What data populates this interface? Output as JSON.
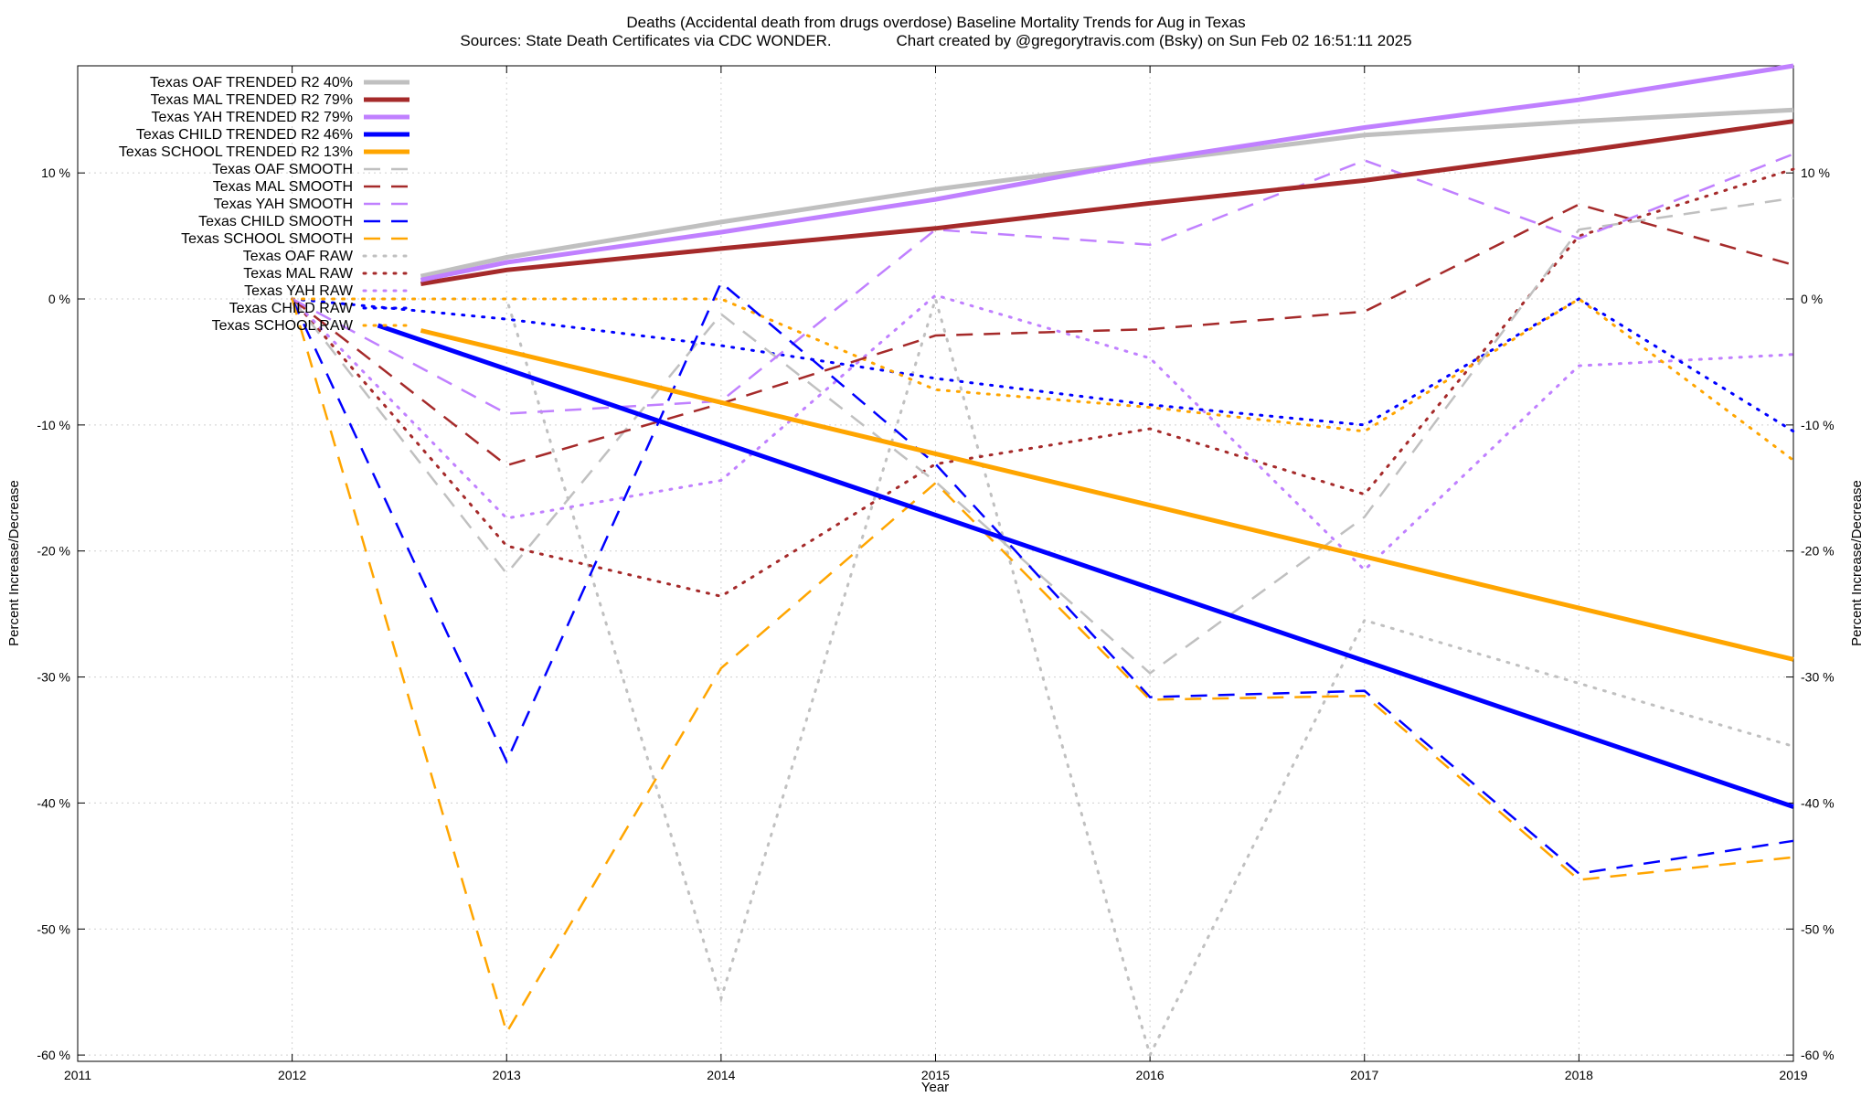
{
  "chart_data": {
    "type": "line",
    "title": "Deaths (Accidental death from drugs overdose)  Baseline Mortality Trends for Aug in Texas",
    "subtitle": "Sources: State Death Certificates via CDC WONDER.               Chart created by @gregorytravis.com (Bsky) on Sun Feb 02 16:51:11 2025",
    "xlabel": "Year",
    "ylabel": "Percent Increase/Decrease",
    "xlim": [
      2011,
      2019
    ],
    "ylim": [
      -60,
      18
    ],
    "x_ticks": [
      2011,
      2012,
      2013,
      2014,
      2015,
      2016,
      2017,
      2018,
      2019
    ],
    "x_tick_labels": [
      "2011",
      "2012",
      "2013",
      "2014",
      "2015",
      "2016",
      "2017",
      "2018",
      "2019"
    ],
    "y_ticks": [
      -60,
      -50,
      -40,
      -30,
      -20,
      -10,
      0,
      10
    ],
    "y_tick_labels": [
      "-60 %",
      "-50 %",
      "-40 %",
      "-30 %",
      "-20 %",
      "-10 %",
      "0 %",
      "10 %"
    ],
    "grid": true,
    "legend_position": "top-left",
    "series": [
      {
        "name": "Texas OAF TRENDED R2  40%",
        "style": "trend",
        "color": "#c0c0c0",
        "x": [
          2012.6,
          2013,
          2014,
          2015,
          2016,
          2017,
          2018,
          2019
        ],
        "y": [
          1.8,
          3.3,
          6.1,
          8.7,
          10.9,
          13.0,
          14.1,
          15.0
        ]
      },
      {
        "name": "Texas MAL TRENDED R2  79%",
        "style": "trend",
        "color": "#a52a2a",
        "x": [
          2012.6,
          2013,
          2014,
          2015,
          2016,
          2017,
          2018,
          2019
        ],
        "y": [
          1.2,
          2.3,
          4.0,
          5.6,
          7.6,
          9.4,
          11.7,
          14.1
        ]
      },
      {
        "name": "Texas YAH TRENDED R2  79%",
        "style": "trend",
        "color": "#c080ff",
        "x": [
          2012.6,
          2013,
          2014,
          2015,
          2016,
          2017,
          2018,
          2019
        ],
        "y": [
          1.5,
          2.9,
          5.3,
          7.9,
          11.0,
          13.6,
          15.8,
          18.5
        ]
      },
      {
        "name": "Texas CHILD TRENDED R2  46%",
        "style": "trend",
        "color": "#0000ff",
        "x": [
          2012.4,
          2019
        ],
        "y": [
          -2.1,
          -40.3
        ]
      },
      {
        "name": "Texas SCHOOL TRENDED R2  13%",
        "style": "trend",
        "color": "#ffa500",
        "x": [
          2012.6,
          2019
        ],
        "y": [
          -2.5,
          -28.6
        ]
      },
      {
        "name": "Texas OAF SMOOTH",
        "style": "smooth",
        "color": "#c0c0c0",
        "x": [
          2012,
          2013,
          2014,
          2015,
          2016,
          2017,
          2018,
          2019
        ],
        "y": [
          0,
          -21.8,
          -1.2,
          -14.5,
          -29.7,
          -17.3,
          5.5,
          8.0
        ]
      },
      {
        "name": "Texas MAL SMOOTH",
        "style": "smooth",
        "color": "#a52a2a",
        "x": [
          2012,
          2013,
          2014,
          2015,
          2016,
          2017,
          2018,
          2019
        ],
        "y": [
          0,
          -13.2,
          -8.3,
          -2.9,
          -2.4,
          -1.0,
          7.5,
          2.7
        ]
      },
      {
        "name": "Texas YAH SMOOTH",
        "style": "smooth",
        "color": "#c080ff",
        "x": [
          2012,
          2013,
          2014,
          2015,
          2016,
          2017,
          2018,
          2019
        ],
        "y": [
          0,
          -9.1,
          -8.1,
          5.5,
          4.3,
          11.0,
          4.8,
          11.5
        ]
      },
      {
        "name": "Texas CHILD SMOOTH",
        "style": "smooth",
        "color": "#0000ff",
        "x": [
          2012,
          2013,
          2014,
          2015,
          2016,
          2017,
          2018,
          2019
        ],
        "y": [
          0,
          -36.7,
          1.3,
          -13.1,
          -31.6,
          -31.1,
          -45.6,
          -43.0
        ]
      },
      {
        "name": "Texas SCHOOL SMOOTH",
        "style": "smooth",
        "color": "#ffa500",
        "x": [
          2012,
          2013,
          2014,
          2015,
          2016,
          2017,
          2018,
          2019
        ],
        "y": [
          0,
          -58.2,
          -29.3,
          -14.6,
          -31.8,
          -31.5,
          -46.1,
          -44.3
        ]
      },
      {
        "name": "Texas OAF RAW",
        "style": "raw",
        "color": "#c0c0c0",
        "x": [
          2012,
          2013,
          2014,
          2015,
          2016,
          2017,
          2018,
          2019
        ],
        "y": [
          0,
          0,
          -55.5,
          0,
          -60.0,
          -25.5,
          -30.5,
          -35.5
        ]
      },
      {
        "name": "Texas MAL RAW",
        "style": "raw",
        "color": "#a52a2a",
        "x": [
          2012,
          2013,
          2014,
          2015,
          2016,
          2017,
          2018,
          2019
        ],
        "y": [
          0,
          -19.6,
          -23.6,
          -13.1,
          -10.3,
          -15.5,
          5.0,
          10.3
        ]
      },
      {
        "name": "Texas YAH RAW",
        "style": "raw",
        "color": "#c080ff",
        "x": [
          2012,
          2013,
          2014,
          2015,
          2016,
          2017,
          2018,
          2019
        ],
        "y": [
          0,
          -17.4,
          -14.4,
          0.3,
          -4.7,
          -21.5,
          -5.3,
          -4.4
        ]
      },
      {
        "name": "Texas CHILD RAW",
        "style": "raw",
        "color": "#0000ff",
        "x": [
          2012,
          2013,
          2014,
          2015,
          2016,
          2017,
          2018,
          2019
        ],
        "y": [
          0,
          -1.6,
          -3.7,
          -6.3,
          -8.4,
          -10.0,
          0,
          -10.5
        ]
      },
      {
        "name": "Texas SCHOOL RAW",
        "style": "raw",
        "color": "#ffa500",
        "x": [
          2012,
          2013,
          2014,
          2015,
          2016,
          2017,
          2018,
          2019
        ],
        "y": [
          0,
          0,
          0,
          -7.2,
          -8.6,
          -10.5,
          0,
          -12.8
        ]
      }
    ]
  }
}
